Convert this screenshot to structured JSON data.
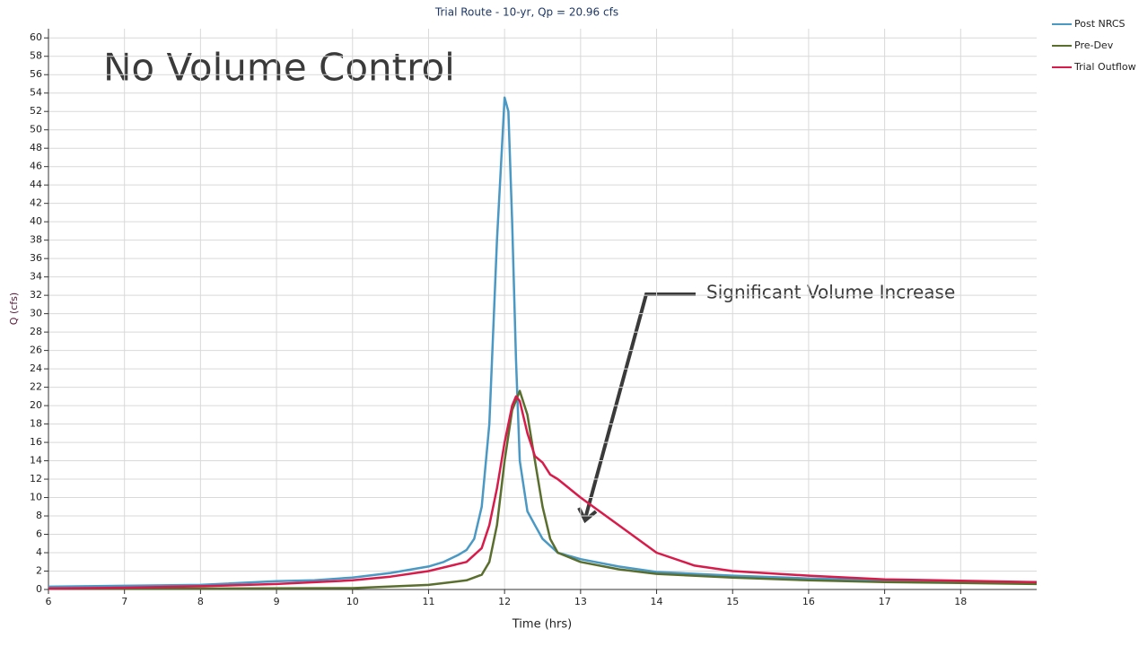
{
  "chart_data": {
    "type": "line",
    "title": "Trial Route - 10-yr, Qp = 20.96 cfs",
    "x_label": "Time (hrs)",
    "y_label": "Q (cfs)",
    "annotations": [
      "No Volume Control",
      "Significant Volume Increase"
    ],
    "xlim": [
      6,
      19
    ],
    "xticks": [
      6,
      7,
      8,
      9,
      10,
      11,
      12,
      13,
      14,
      15,
      16,
      17,
      18
    ],
    "ylim": [
      0,
      61
    ],
    "yticks": [
      0,
      2,
      4,
      6,
      8,
      10,
      12,
      14,
      16,
      18,
      20,
      22,
      24,
      26,
      28,
      30,
      32,
      34,
      36,
      38,
      40,
      42,
      44,
      46,
      48,
      50,
      52,
      54,
      56,
      58,
      60
    ],
    "grid": true,
    "legend": "right",
    "series": [
      {
        "name": "Post NRCS",
        "color": "#4a98c4",
        "x": [
          6,
          7,
          8,
          9,
          9.5,
          10,
          10.5,
          11,
          11.2,
          11.4,
          11.5,
          11.6,
          11.7,
          11.8,
          11.9,
          12.0,
          12.05,
          12.1,
          12.15,
          12.2,
          12.3,
          12.4,
          12.5,
          12.7,
          13,
          13.5,
          14,
          15,
          16,
          17,
          18,
          19
        ],
        "values": [
          0.3,
          0.4,
          0.5,
          0.9,
          1.0,
          1.3,
          1.8,
          2.5,
          3,
          3.8,
          4.3,
          5.5,
          9,
          18,
          38,
          53.5,
          52,
          40,
          25,
          14,
          8.5,
          7,
          5.5,
          4.0,
          3.3,
          2.5,
          1.9,
          1.5,
          1.2,
          1.0,
          0.8,
          0.7
        ]
      },
      {
        "name": "Pre-Dev",
        "color": "#5a6e2e",
        "x": [
          6,
          8,
          10,
          11,
          11.5,
          11.7,
          11.8,
          11.9,
          12.0,
          12.1,
          12.2,
          12.3,
          12.4,
          12.5,
          12.6,
          12.7,
          13,
          13.5,
          14,
          15,
          16,
          17,
          18,
          19
        ],
        "values": [
          0.1,
          0.1,
          0.15,
          0.5,
          1.0,
          1.6,
          3,
          7,
          14,
          19.5,
          21.6,
          19,
          14,
          9,
          5.5,
          4,
          3,
          2.2,
          1.7,
          1.3,
          1.0,
          0.8,
          0.7,
          0.6
        ]
      },
      {
        "name": "Trial Outflow",
        "color": "#d81b4a",
        "x": [
          6,
          7,
          8,
          9,
          10,
          10.5,
          11,
          11.5,
          11.7,
          11.8,
          11.9,
          12.0,
          12.1,
          12.15,
          12.2,
          12.3,
          12.4,
          12.5,
          12.6,
          12.7,
          13,
          13.5,
          14,
          14.5,
          15,
          16,
          17,
          18,
          19
        ],
        "values": [
          0.1,
          0.2,
          0.35,
          0.6,
          1.0,
          1.4,
          2.0,
          3.0,
          4.5,
          7,
          11,
          16,
          20,
          21,
          20.5,
          17,
          14.5,
          13.8,
          12.5,
          12,
          10,
          7,
          4,
          2.6,
          2.0,
          1.5,
          1.1,
          0.95,
          0.8
        ]
      }
    ]
  }
}
